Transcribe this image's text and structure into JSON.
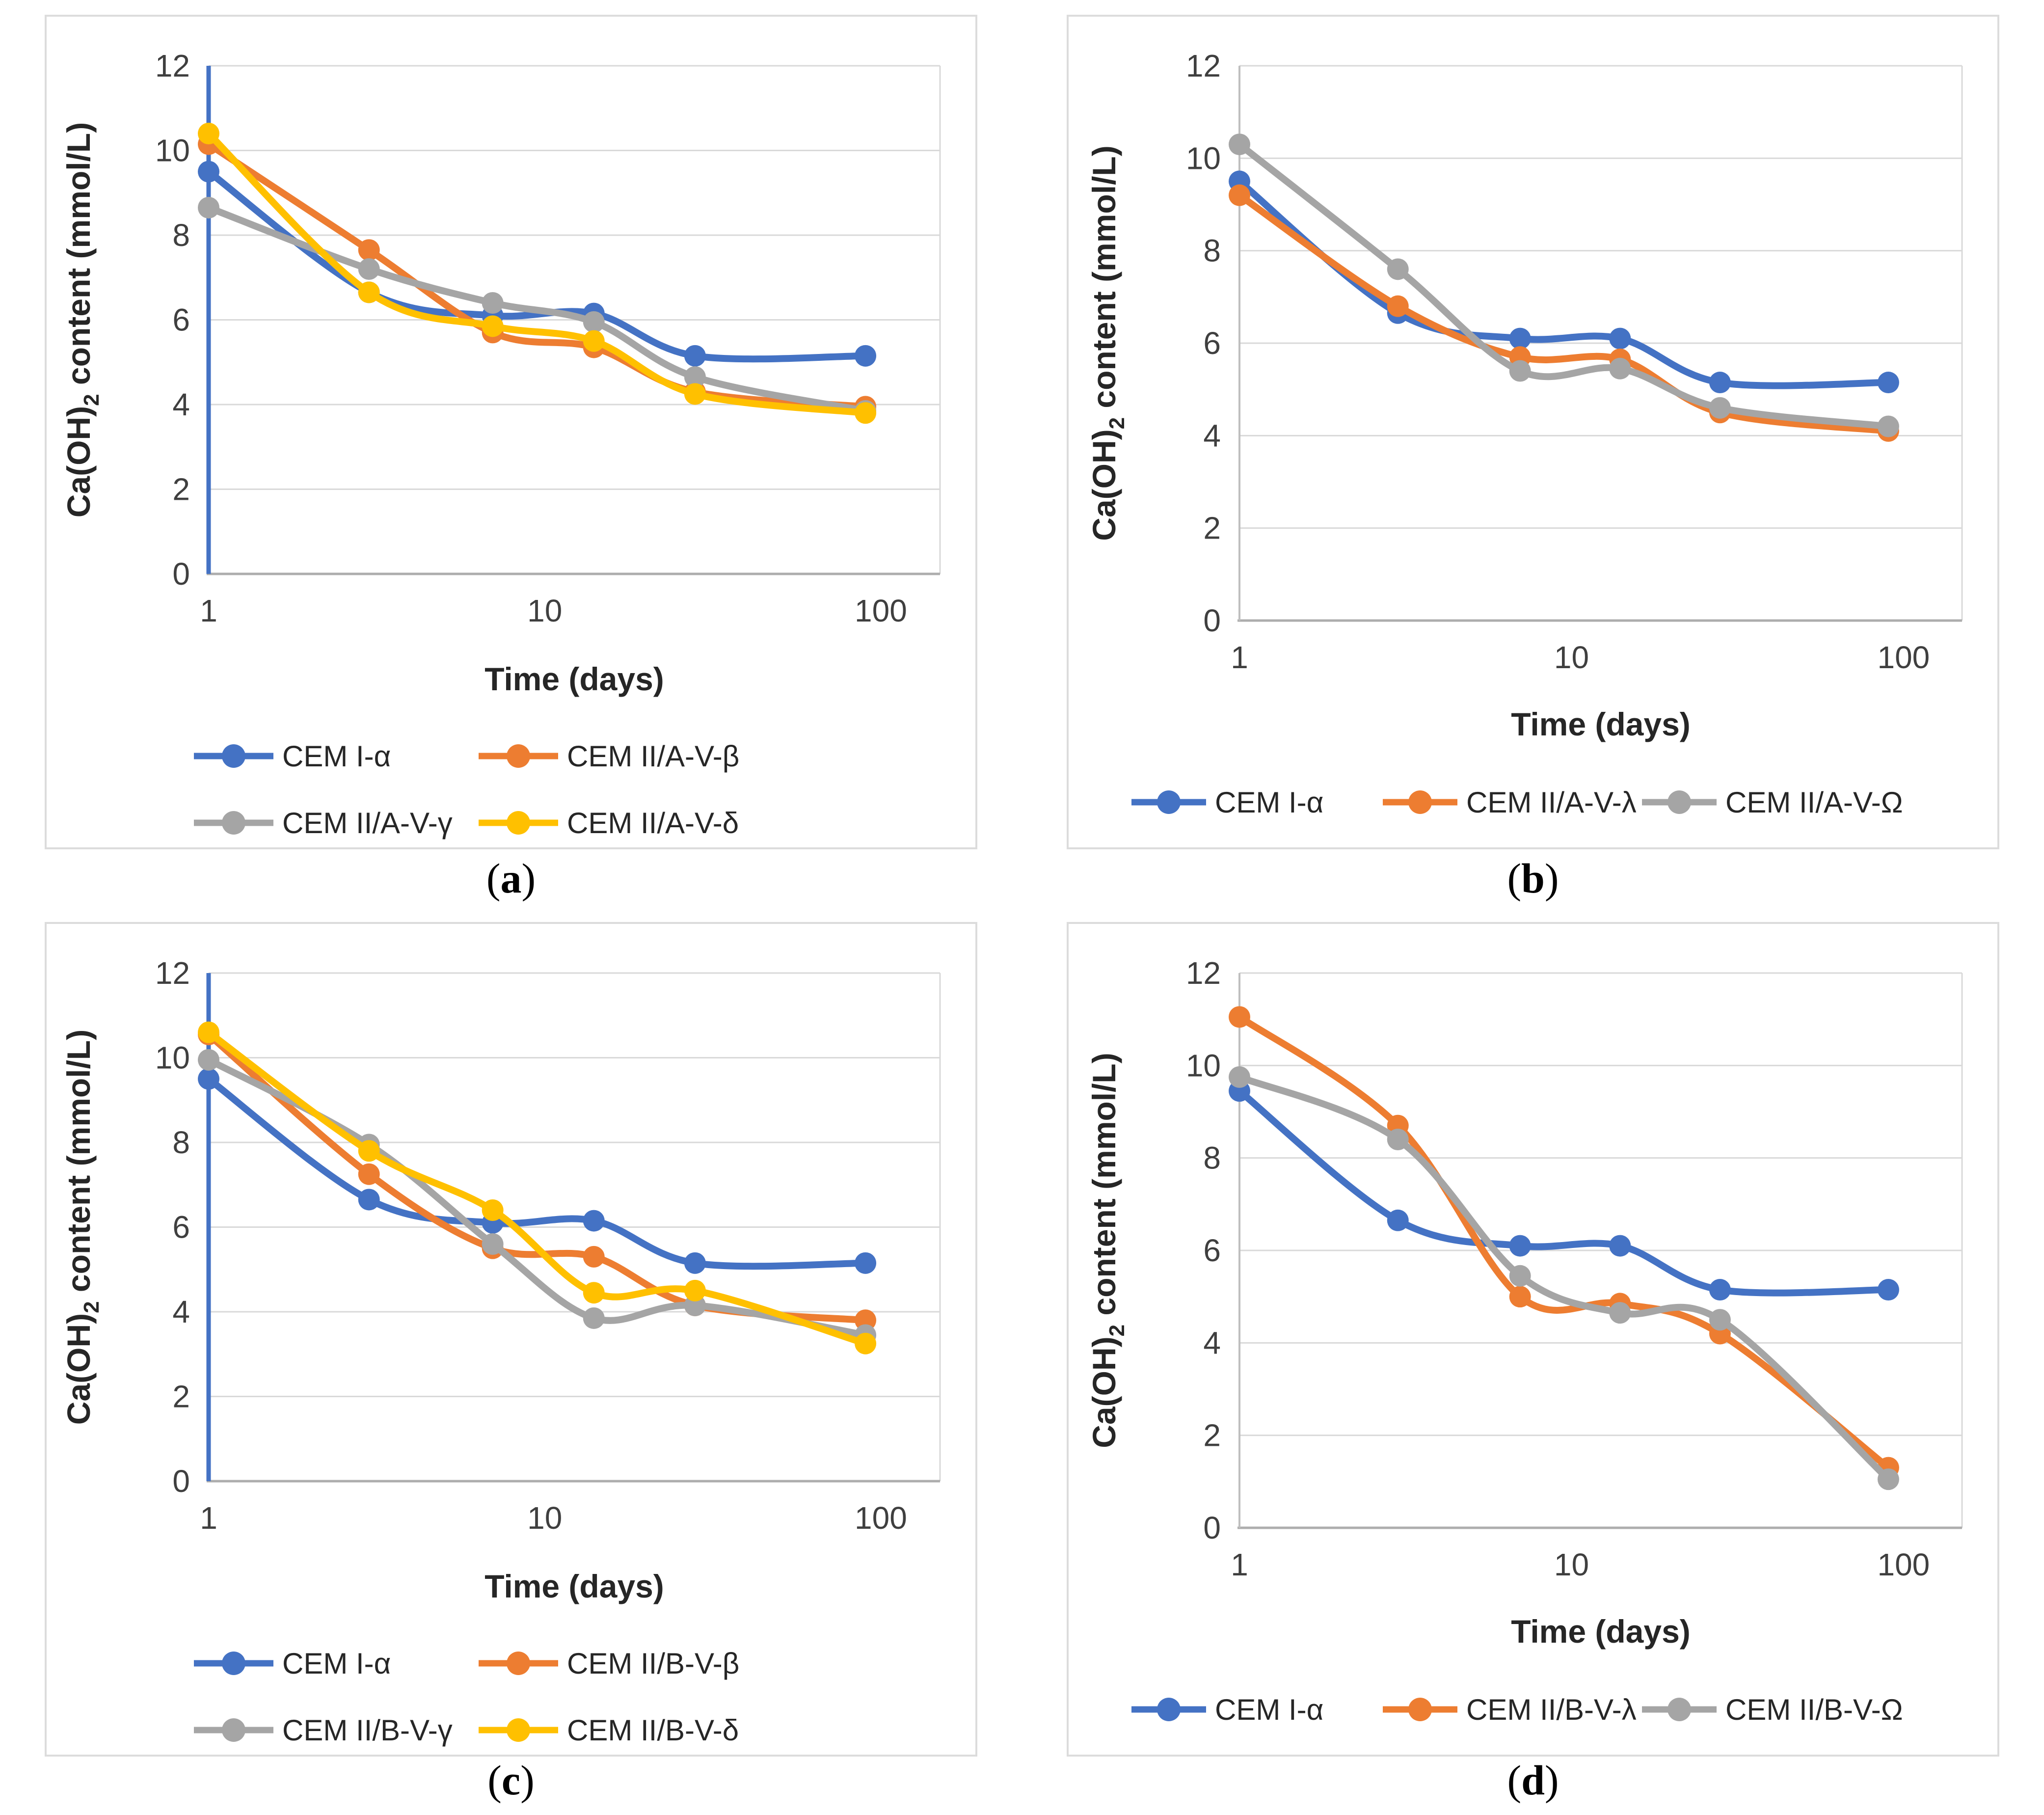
{
  "axes": {
    "y_title_pre": "Ca(OH)",
    "y_title_sub": "2",
    "y_title_post": " content (mmol/L)",
    "x_title": "Time (days)",
    "y_ticks": [
      0,
      2,
      4,
      6,
      8,
      10,
      12
    ],
    "x_ticks": [
      1,
      10,
      100
    ],
    "ylim": [
      0,
      12
    ],
    "xlim": [
      1,
      150
    ],
    "xscale": "log",
    "grid": "horizontal"
  },
  "colors": {
    "blue": "#4472C4",
    "orange": "#ED7D31",
    "gray": "#A5A5A5",
    "yellow": "#FFC000",
    "gridline": "#D9D9D9",
    "axis_line": "#BFBFBF",
    "bottom_axis": "#ADADAD",
    "tick_text": "#595959",
    "title_text": "#262626"
  },
  "chart_data": [
    {
      "type": "line",
      "panel": "a",
      "caption_open": "(",
      "caption_letter": "a",
      "caption_close": ")",
      "x": [
        1,
        3,
        7,
        14,
        28,
        90
      ],
      "xlabel": "Time (days)",
      "ylabel": "Ca(OH)2 content (mmol/L)",
      "ylim": [
        0,
        12
      ],
      "xscale": "log",
      "blue_vline_at_x1": true,
      "legend_layout": "two-rows",
      "series": [
        {
          "name": "CEM I-α",
          "color": "#4472C4",
          "values": [
            9.5,
            6.65,
            6.1,
            6.15,
            5.15,
            5.15
          ]
        },
        {
          "name": "CEM II/A-V-β",
          "color": "#ED7D31",
          "values": [
            10.15,
            7.65,
            5.7,
            5.35,
            4.3,
            3.95
          ]
        },
        {
          "name": "CEM II/A-V-γ",
          "color": "#A5A5A5",
          "values": [
            8.65,
            7.2,
            6.4,
            5.95,
            4.65,
            3.85
          ]
        },
        {
          "name": "CEM II/A-V-δ",
          "color": "#FFC000",
          "values": [
            10.4,
            6.65,
            5.85,
            5.5,
            4.25,
            3.8
          ]
        }
      ]
    },
    {
      "type": "line",
      "panel": "b",
      "caption_open": "(",
      "caption_letter": "b",
      "caption_close": ")",
      "x": [
        1,
        3,
        7,
        14,
        28,
        90
      ],
      "xlabel": "Time (days)",
      "ylabel": "Ca(OH)2 content (mmol/L)",
      "ylim": [
        0,
        12
      ],
      "xscale": "log",
      "blue_vline_at_x1": false,
      "legend_layout": "one-row",
      "series": [
        {
          "name": "CEM I-α",
          "color": "#4472C4",
          "values": [
            9.5,
            6.65,
            6.1,
            6.1,
            5.15,
            5.15
          ]
        },
        {
          "name": "CEM II/A-V-λ",
          "color": "#ED7D31",
          "values": [
            9.2,
            6.8,
            5.7,
            5.65,
            4.5,
            4.1
          ]
        },
        {
          "name": "CEM II/A-V-Ω",
          "color": "#A5A5A5",
          "values": [
            10.3,
            7.6,
            5.4,
            5.45,
            4.6,
            4.2
          ]
        }
      ]
    },
    {
      "type": "line",
      "panel": "c",
      "caption_open": "(",
      "caption_letter": "c",
      "caption_close": ")",
      "x": [
        1,
        3,
        7,
        14,
        28,
        90
      ],
      "xlabel": "Time (days)",
      "ylabel": "Ca(OH)2 content (mmol/L)",
      "ylim": [
        0,
        12
      ],
      "xscale": "log",
      "blue_vline_at_x1": true,
      "legend_layout": "two-rows",
      "series": [
        {
          "name": "CEM I-α",
          "color": "#4472C4",
          "values": [
            9.5,
            6.65,
            6.1,
            6.15,
            5.15,
            5.15
          ]
        },
        {
          "name": "CEM II/B-V-β",
          "color": "#ED7D31",
          "values": [
            10.55,
            7.25,
            5.5,
            5.3,
            4.15,
            3.8
          ]
        },
        {
          "name": "CEM II/B-V-γ",
          "color": "#A5A5A5",
          "values": [
            9.95,
            7.95,
            5.6,
            3.85,
            4.15,
            3.45
          ]
        },
        {
          "name": "CEM II/B-V-δ",
          "color": "#FFC000",
          "values": [
            10.6,
            7.8,
            6.4,
            4.45,
            4.5,
            3.25
          ]
        }
      ]
    },
    {
      "type": "line",
      "panel": "d",
      "caption_open": "(",
      "caption_letter": "d",
      "caption_close": ")",
      "x": [
        1,
        3,
        7,
        14,
        28,
        90
      ],
      "xlabel": "Time (days)",
      "ylabel": "Ca(OH)2 content (mmol/L)",
      "ylim": [
        0,
        12
      ],
      "xscale": "log",
      "blue_vline_at_x1": false,
      "legend_layout": "one-row",
      "series": [
        {
          "name": "CEM I-α",
          "color": "#4472C4",
          "values": [
            9.45,
            6.65,
            6.1,
            6.1,
            5.15,
            5.15
          ]
        },
        {
          "name": "CEM II/B-V-λ",
          "color": "#ED7D31",
          "values": [
            11.05,
            8.7,
            5.0,
            4.85,
            4.2,
            1.3
          ]
        },
        {
          "name": "CEM II/B-V-Ω",
          "color": "#A5A5A5",
          "values": [
            9.75,
            8.4,
            5.45,
            4.65,
            4.5,
            1.05
          ]
        }
      ]
    }
  ]
}
